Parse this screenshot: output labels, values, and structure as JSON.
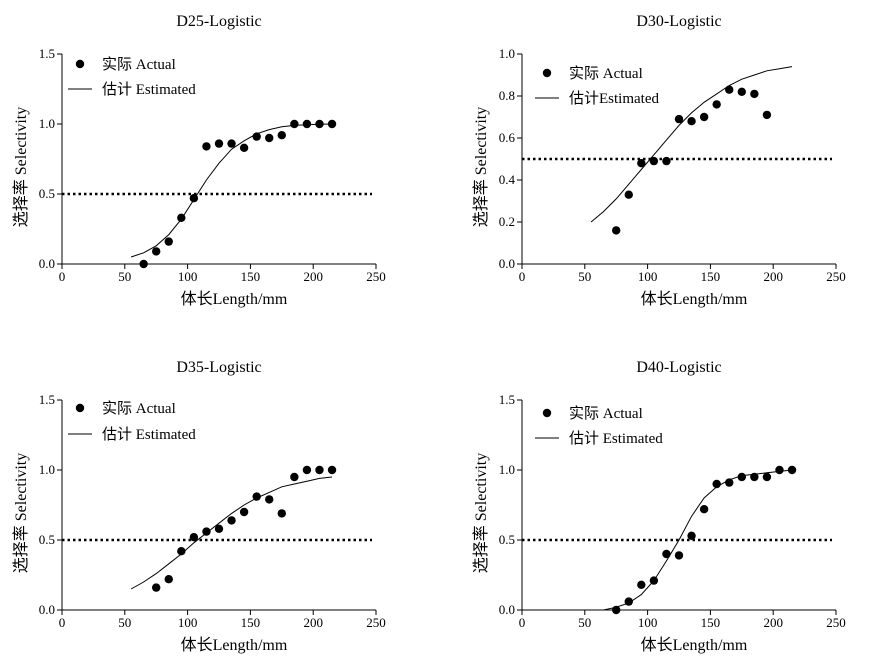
{
  "chart_data": [
    {
      "type": "scatter",
      "title": "D25-Logistic",
      "xlabel": "体长Length/mm",
      "ylabel": "选择率  Selectivity",
      "xlim": [
        0,
        250
      ],
      "ylim": [
        0,
        1.5
      ],
      "xticks": [
        0,
        50,
        100,
        150,
        200,
        250
      ],
      "yticks": [
        "0.0",
        "0.5",
        "1.0",
        "1.5"
      ],
      "legend_position": "top-left",
      "reference_line": 0.5,
      "series": [
        {
          "name": "实际  Actual",
          "marker": "circle",
          "x": [
            65,
            75,
            85,
            95,
            105,
            115,
            125,
            135,
            145,
            155,
            165,
            175,
            185,
            195,
            205,
            215
          ],
          "y": [
            0.0,
            0.09,
            0.16,
            0.33,
            0.47,
            0.84,
            0.86,
            0.86,
            0.83,
            0.91,
            0.9,
            0.92,
            1.0,
            1.0,
            1.0,
            1.0
          ]
        },
        {
          "name": "估计 Estimated",
          "line": true,
          "x": [
            55,
            65,
            75,
            85,
            95,
            105,
            115,
            125,
            135,
            145,
            155,
            165,
            175,
            185,
            195,
            205,
            215
          ],
          "y": [
            0.05,
            0.08,
            0.13,
            0.21,
            0.32,
            0.46,
            0.6,
            0.72,
            0.82,
            0.88,
            0.93,
            0.96,
            0.98,
            0.99,
            0.995,
            0.998,
            1.0
          ]
        }
      ]
    },
    {
      "type": "scatter",
      "title": "D30-Logistic",
      "xlabel": "体长Length/mm",
      "ylabel": "选择率  Selectivity",
      "xlim": [
        0,
        250
      ],
      "ylim": [
        0,
        1.0
      ],
      "xticks": [
        0,
        50,
        100,
        150,
        200,
        250
      ],
      "yticks": [
        "0.0",
        "0.2",
        "0.4",
        "0.6",
        "0.8",
        "1.0"
      ],
      "legend_position": "top-left",
      "reference_line": 0.5,
      "series": [
        {
          "name": "实际  Actual",
          "marker": "circle",
          "x": [
            75,
            85,
            95,
            105,
            115,
            125,
            135,
            145,
            155,
            165,
            175,
            185,
            195
          ],
          "y": [
            0.16,
            0.33,
            0.48,
            0.49,
            0.49,
            0.69,
            0.68,
            0.7,
            0.76,
            0.83,
            0.82,
            0.81,
            0.71
          ]
        },
        {
          "name": "估计Estimated",
          "line": true,
          "x": [
            55,
            65,
            75,
            85,
            95,
            105,
            115,
            125,
            135,
            145,
            155,
            165,
            175,
            185,
            195,
            205,
            215
          ],
          "y": [
            0.2,
            0.25,
            0.31,
            0.38,
            0.45,
            0.52,
            0.59,
            0.66,
            0.72,
            0.77,
            0.81,
            0.85,
            0.88,
            0.9,
            0.92,
            0.93,
            0.94
          ]
        }
      ]
    },
    {
      "type": "scatter",
      "title": "D35-Logistic",
      "xlabel": "体长Length/mm",
      "ylabel": "选择率  Selectivity",
      "xlim": [
        0,
        250
      ],
      "ylim": [
        0,
        1.5
      ],
      "xticks": [
        0,
        50,
        100,
        150,
        200,
        250
      ],
      "yticks": [
        "0.0",
        "0.5",
        "1.0",
        "1.5"
      ],
      "legend_position": "top-left",
      "reference_line": 0.5,
      "series": [
        {
          "name": "实际  Actual",
          "marker": "circle",
          "x": [
            75,
            85,
            95,
            105,
            115,
            125,
            135,
            145,
            155,
            165,
            175,
            185,
            195,
            205,
            215
          ],
          "y": [
            0.16,
            0.22,
            0.42,
            0.52,
            0.56,
            0.58,
            0.64,
            0.7,
            0.81,
            0.79,
            0.69,
            0.95,
            1.0,
            1.0,
            1.0
          ]
        },
        {
          "name": "估计  Estimated",
          "line": true,
          "x": [
            55,
            65,
            75,
            85,
            95,
            105,
            115,
            125,
            135,
            145,
            155,
            165,
            175,
            185,
            195,
            205,
            215
          ],
          "y": [
            0.15,
            0.2,
            0.26,
            0.33,
            0.4,
            0.48,
            0.55,
            0.62,
            0.69,
            0.75,
            0.8,
            0.84,
            0.88,
            0.9,
            0.92,
            0.94,
            0.95
          ]
        }
      ]
    },
    {
      "type": "scatter",
      "title": "D40-Logistic",
      "xlabel": "体长Length/mm",
      "ylabel": "选择率  Selectivity",
      "xlim": [
        0,
        250
      ],
      "ylim": [
        0,
        1.5
      ],
      "xticks": [
        0,
        50,
        100,
        150,
        200,
        250
      ],
      "yticks": [
        "0.0",
        "0.5",
        "1.0",
        "1.5"
      ],
      "legend_position": "top-left",
      "reference_line": 0.5,
      "series": [
        {
          "name": "实际  Actual",
          "marker": "circle",
          "x": [
            75,
            85,
            95,
            105,
            115,
            125,
            135,
            145,
            155,
            165,
            175,
            185,
            195,
            205,
            215
          ],
          "y": [
            0.0,
            0.06,
            0.18,
            0.21,
            0.4,
            0.39,
            0.53,
            0.72,
            0.9,
            0.91,
            0.95,
            0.95,
            0.95,
            1.0,
            1.0
          ]
        },
        {
          "name": "估计  Estimated",
          "line": true,
          "x": [
            65,
            75,
            85,
            95,
            105,
            115,
            125,
            135,
            145,
            155,
            165,
            175,
            185,
            195,
            205,
            215
          ],
          "y": [
            0.0,
            0.02,
            0.05,
            0.11,
            0.21,
            0.35,
            0.5,
            0.67,
            0.8,
            0.88,
            0.93,
            0.96,
            0.97,
            0.98,
            0.99,
            1.0
          ]
        }
      ]
    }
  ]
}
